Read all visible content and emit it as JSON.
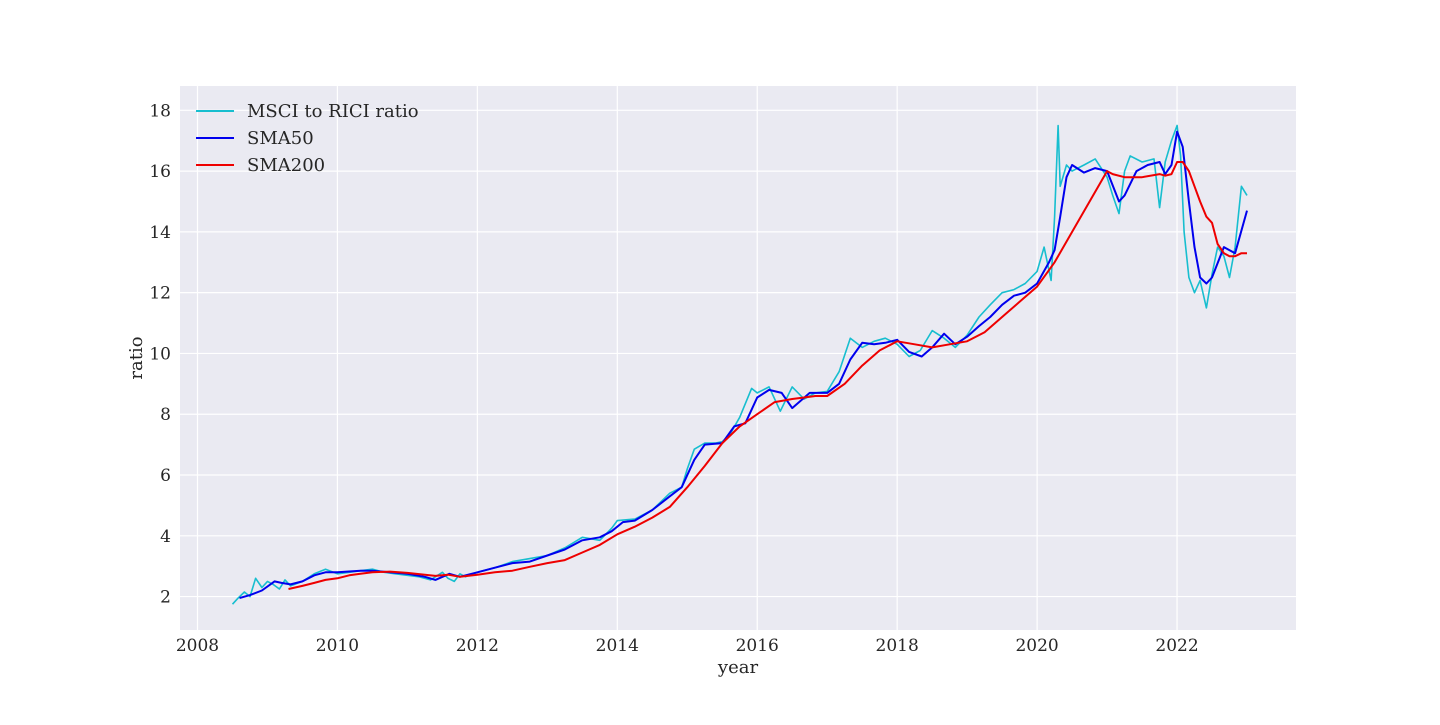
{
  "chart_data": {
    "type": "line",
    "title": "",
    "xlabel": "year",
    "ylabel": "ratio",
    "xlim": [
      2007.75,
      2023.7
    ],
    "ylim": [
      0.9,
      18.8
    ],
    "x_ticks": [
      2008,
      2010,
      2012,
      2014,
      2016,
      2018,
      2020,
      2022
    ],
    "x_tick_labels": [
      "2008",
      "2010",
      "2012",
      "2014",
      "2016",
      "2018",
      "2020",
      "2022"
    ],
    "y_ticks": [
      2,
      4,
      6,
      8,
      10,
      12,
      14,
      16,
      18
    ],
    "y_tick_labels": [
      "2",
      "4",
      "6",
      "8",
      "10",
      "12",
      "14",
      "16",
      "18"
    ],
    "grid": true,
    "legend_position": "top-left",
    "series": [
      {
        "name": "MSCI to RICI ratio",
        "color": "#17becf",
        "x": [
          2008.5,
          2008.58,
          2008.67,
          2008.75,
          2008.83,
          2008.92,
          2009.0,
          2009.08,
          2009.17,
          2009.25,
          2009.33,
          2009.5,
          2009.67,
          2009.83,
          2010.0,
          2010.17,
          2010.33,
          2010.5,
          2010.67,
          2010.83,
          2011.0,
          2011.17,
          2011.33,
          2011.5,
          2011.58,
          2011.67,
          2011.75,
          2011.83,
          2012.0,
          2012.25,
          2012.5,
          2012.75,
          2013.0,
          2013.25,
          2013.5,
          2013.75,
          2013.92,
          2014.0,
          2014.25,
          2014.5,
          2014.75,
          2014.92,
          2015.0,
          2015.1,
          2015.25,
          2015.4,
          2015.5,
          2015.6,
          2015.75,
          2015.92,
          2016.0,
          2016.17,
          2016.33,
          2016.5,
          2016.67,
          2016.83,
          2017.0,
          2017.17,
          2017.33,
          2017.5,
          2017.67,
          2017.83,
          2018.0,
          2018.17,
          2018.33,
          2018.5,
          2018.67,
          2018.83,
          2019.0,
          2019.17,
          2019.33,
          2019.5,
          2019.67,
          2019.83,
          2020.0,
          2020.1,
          2020.2,
          2020.25,
          2020.3,
          2020.33,
          2020.42,
          2020.5,
          2020.67,
          2020.83,
          2021.0,
          2021.08,
          2021.17,
          2021.25,
          2021.33,
          2021.5,
          2021.67,
          2021.75,
          2021.83,
          2021.92,
          2022.0,
          2022.05,
          2022.1,
          2022.17,
          2022.25,
          2022.33,
          2022.42,
          2022.5,
          2022.58,
          2022.67,
          2022.75,
          2022.83,
          2022.92,
          2023.0
        ],
        "values": [
          1.75,
          1.95,
          2.15,
          2.0,
          2.6,
          2.3,
          2.5,
          2.4,
          2.25,
          2.55,
          2.35,
          2.5,
          2.75,
          2.9,
          2.75,
          2.8,
          2.85,
          2.9,
          2.8,
          2.75,
          2.7,
          2.65,
          2.55,
          2.8,
          2.6,
          2.5,
          2.75,
          2.65,
          2.8,
          2.95,
          3.15,
          3.25,
          3.35,
          3.6,
          3.95,
          3.85,
          4.25,
          4.5,
          4.55,
          4.85,
          5.4,
          5.6,
          6.2,
          6.85,
          7.05,
          7.05,
          7.1,
          7.3,
          7.9,
          8.85,
          8.7,
          8.9,
          8.1,
          8.9,
          8.5,
          8.7,
          8.75,
          9.4,
          10.5,
          10.2,
          10.4,
          10.5,
          10.3,
          9.9,
          10.1,
          10.75,
          10.5,
          10.2,
          10.6,
          11.2,
          11.6,
          12.0,
          12.1,
          12.3,
          12.7,
          13.5,
          12.4,
          14.5,
          17.5,
          15.5,
          16.2,
          16.0,
          16.2,
          16.4,
          15.8,
          15.2,
          14.6,
          16.0,
          16.5,
          16.3,
          16.4,
          14.8,
          16.3,
          17.0,
          17.5,
          16.5,
          14.0,
          12.5,
          12.0,
          12.4,
          11.5,
          12.6,
          13.5,
          13.2,
          12.5,
          13.5,
          15.5,
          15.2
        ]
      },
      {
        "name": "SMA50",
        "color": "#0000ee",
        "x": [
          2008.6,
          2008.75,
          2008.92,
          2009.1,
          2009.2,
          2009.33,
          2009.5,
          2009.67,
          2009.83,
          2010.0,
          2010.33,
          2010.5,
          2010.75,
          2011.0,
          2011.25,
          2011.4,
          2011.6,
          2011.75,
          2012.0,
          2012.25,
          2012.5,
          2012.75,
          2013.0,
          2013.25,
          2013.5,
          2013.75,
          2013.92,
          2014.08,
          2014.25,
          2014.5,
          2014.75,
          2014.92,
          2015.1,
          2015.25,
          2015.5,
          2015.67,
          2015.83,
          2016.0,
          2016.17,
          2016.35,
          2016.5,
          2016.75,
          2017.0,
          2017.17,
          2017.33,
          2017.5,
          2017.67,
          2017.83,
          2018.0,
          2018.17,
          2018.35,
          2018.5,
          2018.67,
          2018.83,
          2019.0,
          2019.17,
          2019.33,
          2019.5,
          2019.67,
          2019.83,
          2020.0,
          2020.17,
          2020.25,
          2020.33,
          2020.42,
          2020.5,
          2020.67,
          2020.83,
          2021.0,
          2021.17,
          2021.25,
          2021.42,
          2021.58,
          2021.75,
          2021.83,
          2021.92,
          2022.0,
          2022.08,
          2022.17,
          2022.25,
          2022.33,
          2022.42,
          2022.5,
          2022.67,
          2022.83,
          2023.0
        ],
        "values": [
          1.95,
          2.05,
          2.2,
          2.5,
          2.45,
          2.4,
          2.5,
          2.7,
          2.8,
          2.8,
          2.85,
          2.85,
          2.8,
          2.75,
          2.65,
          2.55,
          2.75,
          2.65,
          2.8,
          2.95,
          3.1,
          3.15,
          3.35,
          3.55,
          3.85,
          3.95,
          4.15,
          4.45,
          4.5,
          4.85,
          5.3,
          5.6,
          6.5,
          7.0,
          7.05,
          7.6,
          7.7,
          8.55,
          8.8,
          8.7,
          8.2,
          8.7,
          8.7,
          9.0,
          9.8,
          10.35,
          10.3,
          10.35,
          10.45,
          10.05,
          9.9,
          10.2,
          10.65,
          10.3,
          10.55,
          10.9,
          11.2,
          11.6,
          11.9,
          12.0,
          12.3,
          13.0,
          13.4,
          14.5,
          15.8,
          16.2,
          15.95,
          16.1,
          16.0,
          15.0,
          15.2,
          16.0,
          16.2,
          16.3,
          15.9,
          16.2,
          17.3,
          16.8,
          15.0,
          13.5,
          12.5,
          12.3,
          12.5,
          13.5,
          13.3,
          14.7
        ]
      },
      {
        "name": "SMA200",
        "color": "#ee0000",
        "x": [
          2009.3,
          2009.5,
          2009.67,
          2009.83,
          2010.0,
          2010.17,
          2010.33,
          2010.5,
          2010.75,
          2011.0,
          2011.25,
          2011.4,
          2011.58,
          2011.75,
          2012.0,
          2012.25,
          2012.5,
          2012.75,
          2013.0,
          2013.25,
          2013.5,
          2013.75,
          2014.0,
          2014.25,
          2014.5,
          2014.75,
          2015.0,
          2015.25,
          2015.5,
          2015.75,
          2016.0,
          2016.25,
          2016.5,
          2016.67,
          2016.83,
          2017.0,
          2017.25,
          2017.5,
          2017.75,
          2018.0,
          2018.25,
          2018.5,
          2018.75,
          2019.0,
          2019.25,
          2019.5,
          2019.75,
          2020.0,
          2020.25,
          2020.5,
          2020.75,
          2021.0,
          2021.08,
          2021.25,
          2021.5,
          2021.75,
          2021.83,
          2021.92,
          2022.0,
          2022.08,
          2022.17,
          2022.25,
          2022.33,
          2022.42,
          2022.5,
          2022.58,
          2022.67,
          2022.75,
          2022.83,
          2022.92,
          2023.0
        ],
        "values": [
          2.25,
          2.35,
          2.45,
          2.55,
          2.6,
          2.7,
          2.75,
          2.8,
          2.82,
          2.78,
          2.72,
          2.68,
          2.72,
          2.65,
          2.72,
          2.8,
          2.85,
          2.98,
          3.1,
          3.2,
          3.45,
          3.7,
          4.05,
          4.3,
          4.6,
          4.95,
          5.6,
          6.3,
          7.05,
          7.6,
          8.0,
          8.4,
          8.5,
          8.55,
          8.6,
          8.6,
          9.0,
          9.6,
          10.1,
          10.4,
          10.3,
          10.2,
          10.3,
          10.4,
          10.7,
          11.2,
          11.7,
          12.2,
          13.0,
          14.0,
          15.0,
          16.0,
          15.9,
          15.8,
          15.8,
          15.9,
          15.85,
          15.9,
          16.3,
          16.3,
          16.0,
          15.5,
          15.0,
          14.5,
          14.3,
          13.6,
          13.3,
          13.2,
          13.2,
          13.3,
          13.3
        ]
      }
    ]
  }
}
